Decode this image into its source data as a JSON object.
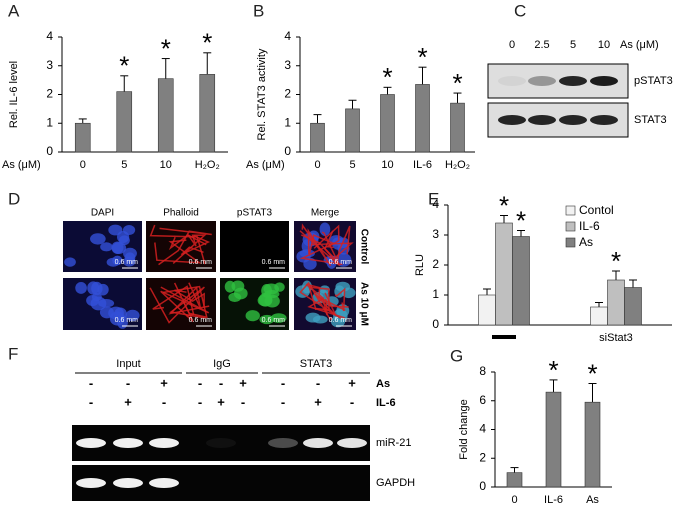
{
  "chart_data": [
    {
      "type": "bar",
      "panel": "A",
      "ylabel": "Rel. IL-6 level",
      "xlabel": "As (μM)",
      "categories": [
        "0",
        "5",
        "10",
        "H₂O₂"
      ],
      "values": [
        1.0,
        2.1,
        2.55,
        2.7
      ],
      "errors": [
        0.15,
        0.55,
        0.7,
        0.75
      ],
      "stars": [
        null,
        "*",
        "*",
        "*"
      ],
      "color": "#808080",
      "ylim": [
        0,
        4
      ],
      "yticks": [
        0,
        1,
        2,
        3,
        4
      ]
    },
    {
      "type": "bar",
      "panel": "B",
      "ylabel": "Rel. STAT3 activity",
      "xlabel": "As (μM)",
      "categories": [
        "0",
        "5",
        "10",
        "IL-6",
        "H₂O₂"
      ],
      "values": [
        1.0,
        1.5,
        2.0,
        2.35,
        1.7
      ],
      "errors": [
        0.3,
        0.3,
        0.25,
        0.6,
        0.35
      ],
      "stars": [
        null,
        null,
        "*",
        "*",
        "*"
      ],
      "color": "#808080",
      "ylim": [
        0,
        4
      ],
      "yticks": [
        0,
        1,
        2,
        3,
        4
      ]
    },
    {
      "type": "bar",
      "panel": "E",
      "ylabel": "RLU",
      "categories": [
        null,
        "siStat3"
      ],
      "series": [
        {
          "name": "Contol",
          "color": "#f2f2f2",
          "values": [
            1.0,
            0.6
          ],
          "errors": [
            0.2,
            0.15
          ],
          "stars": [
            null,
            null
          ]
        },
        {
          "name": "IL-6",
          "color": "#bfbfbf",
          "values": [
            3.4,
            1.5
          ],
          "errors": [
            0.25,
            0.3
          ],
          "stars": [
            "*",
            "*"
          ]
        },
        {
          "name": "As",
          "color": "#808080",
          "values": [
            2.95,
            1.25
          ],
          "errors": [
            0.2,
            0.25
          ],
          "stars": [
            "*",
            null
          ]
        }
      ],
      "legend": "upper right",
      "ylim": [
        0,
        4
      ],
      "yticks": [
        0,
        1,
        2,
        3,
        4
      ]
    },
    {
      "type": "bar",
      "panel": "G",
      "ylabel": "Fold change",
      "categories": [
        "0",
        "IL-6",
        "As"
      ],
      "values": [
        1.0,
        6.6,
        5.9
      ],
      "errors": [
        0.35,
        0.85,
        1.3
      ],
      "stars": [
        null,
        "*",
        "*"
      ],
      "color": "#808080",
      "ylim": [
        0,
        8
      ],
      "yticks": [
        0,
        2,
        4,
        6,
        8
      ]
    }
  ],
  "blot_c": {
    "panel": "C",
    "lanes": [
      "0",
      "2.5",
      "5",
      "10"
    ],
    "unit": "As (μM)",
    "rows": [
      "pSTAT3",
      "STAT3"
    ]
  },
  "micrograph_d": {
    "panel": "D",
    "columns": [
      "DAPI",
      "Phalloid",
      "pSTAT3",
      "Merge"
    ],
    "rows": [
      "Control",
      "As 10 μM"
    ],
    "scale": "0.6 mm"
  },
  "gel_f": {
    "panel": "F",
    "groups": [
      "Input",
      "IgG",
      "STAT3"
    ],
    "conditions": [
      {
        "name": "As",
        "signs": [
          "-",
          "-",
          "+",
          "-",
          "-",
          "+",
          "-",
          "-",
          "+"
        ]
      },
      {
        "name": "IL-6",
        "signs": [
          "-",
          "+",
          "-",
          "-",
          "+",
          "-",
          "-",
          "+",
          "-"
        ]
      }
    ],
    "bands": [
      "miR-21",
      "GAPDH"
    ]
  }
}
